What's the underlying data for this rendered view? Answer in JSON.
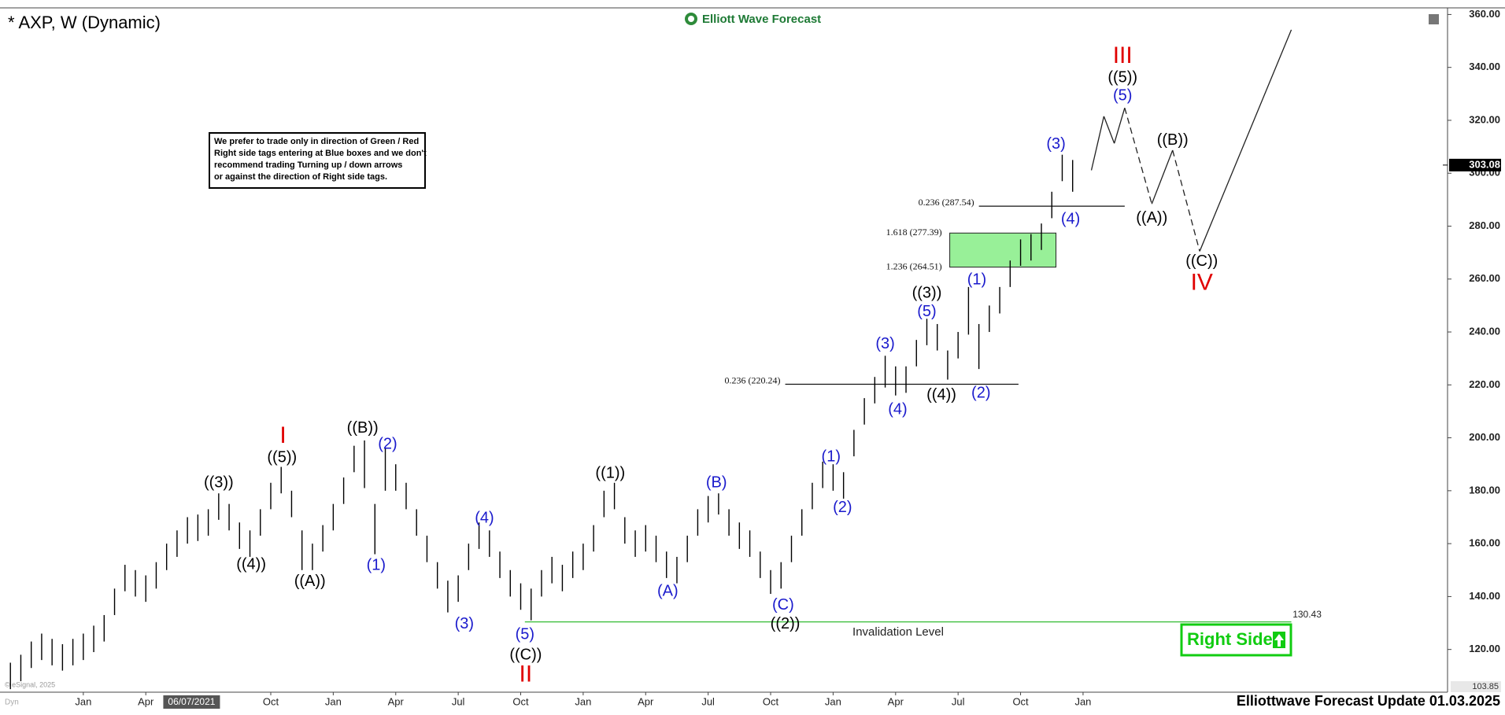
{
  "chart_data": {
    "type": "ohlc",
    "title": "* AXP, W (Dynamic)",
    "logo": "Elliott Wave Forecast",
    "note": [
      "We prefer to trade only in direction of Green / Red",
      "Right side tags entering at Blue boxes and we don't",
      "recommend trading Turning up / down arrows",
      "or against the direction of Right side tags."
    ],
    "footer": "Elliottwave Forecast Update 01.03.2025",
    "right_side_tag": "Right Side",
    "watermark": "© eSignal, 2025",
    "dyn_label": "Dyn",
    "cursor_date": {
      "label": "06/07/2021",
      "x": 5.2
    },
    "last_price": 303.08,
    "color": "#000000",
    "grid": false,
    "xlim": [
      -4,
      65.5
    ],
    "ylim": [
      103.85,
      362.5
    ],
    "xticks": [
      {
        "value": 0,
        "label": "Jan"
      },
      {
        "value": 3,
        "label": "Apr"
      },
      {
        "value": 9,
        "label": "Oct"
      },
      {
        "value": 12,
        "label": "Jan"
      },
      {
        "value": 15,
        "label": "Apr"
      },
      {
        "value": 18,
        "label": "Jul"
      },
      {
        "value": 21,
        "label": "Oct"
      },
      {
        "value": 24,
        "label": "Jan"
      },
      {
        "value": 27,
        "label": "Apr"
      },
      {
        "value": 30,
        "label": "Jul"
      },
      {
        "value": 33,
        "label": "Oct"
      },
      {
        "value": 36,
        "label": "Jan"
      },
      {
        "value": 39,
        "label": "Apr"
      },
      {
        "value": 42,
        "label": "Jul"
      },
      {
        "value": 45,
        "label": "Oct"
      },
      {
        "value": 48,
        "label": "Jan"
      }
    ],
    "yticks": [
      {
        "value": 120,
        "label": "120.00"
      },
      {
        "value": 140,
        "label": "140.00"
      },
      {
        "value": 160,
        "label": "160.00"
      },
      {
        "value": 180,
        "label": "180.00"
      },
      {
        "value": 200,
        "label": "200.00"
      },
      {
        "value": 220,
        "label": "220.00"
      },
      {
        "value": 240,
        "label": "240.00"
      },
      {
        "value": 260,
        "label": "260.00"
      },
      {
        "value": 280,
        "label": "280.00"
      },
      {
        "value": 300,
        "label": "300.00"
      },
      {
        "value": 320,
        "label": "320.00"
      },
      {
        "value": 340,
        "label": "340.00"
      },
      {
        "value": 360,
        "label": "360.00"
      }
    ],
    "x": [
      -3.5,
      -3,
      -2.5,
      -2,
      -1.5,
      -1,
      -0.5,
      0,
      0.5,
      1,
      1.5,
      2,
      2.5,
      3,
      3.5,
      4,
      4.5,
      5,
      5.5,
      6,
      6.5,
      7,
      7.5,
      8,
      8.5,
      9,
      9.5,
      10,
      10.5,
      11,
      11.5,
      12,
      12.5,
      13,
      13.5,
      14,
      14.5,
      15,
      15.5,
      16,
      16.5,
      17,
      17.5,
      18,
      18.5,
      19,
      19.5,
      20,
      20.5,
      21,
      21.5,
      22,
      22.5,
      23,
      23.5,
      24,
      24.5,
      25,
      25.5,
      26,
      26.5,
      27,
      27.5,
      28,
      28.5,
      29,
      29.5,
      30,
      30.5,
      31,
      31.5,
      32,
      32.5,
      33,
      33.5,
      34,
      34.5,
      35,
      35.5,
      36,
      36.5,
      37,
      37.5,
      38,
      38.5,
      39,
      39.5,
      40,
      40.5,
      41,
      41.5,
      42,
      42.5,
      43,
      43.5,
      44,
      44.5,
      45,
      45.5,
      46,
      46.5,
      47,
      47.5
    ],
    "high": [
      115,
      118,
      123,
      126,
      124,
      122,
      124,
      126,
      129,
      133,
      143,
      152,
      150,
      148,
      153,
      160,
      165,
      170,
      171,
      173,
      179,
      175,
      168,
      165,
      173,
      183,
      189,
      180,
      165,
      160,
      167,
      175,
      185,
      197,
      199,
      175,
      196,
      190,
      183,
      173,
      163,
      153,
      146,
      148,
      160,
      168,
      165,
      157,
      150,
      145,
      143,
      150,
      155,
      152,
      157,
      160,
      167,
      180,
      183,
      170,
      165,
      167,
      163,
      157,
      155,
      163,
      173,
      178,
      179,
      173,
      168,
      165,
      157,
      150,
      153,
      163,
      173,
      183,
      191,
      190,
      187,
      203,
      215,
      223,
      231,
      227,
      227,
      237,
      245,
      243,
      233,
      240,
      257,
      243,
      250,
      257,
      267,
      275,
      277,
      281,
      293,
      307,
      305
    ],
    "low": [
      105,
      108,
      113,
      116,
      114,
      112,
      114,
      116,
      119,
      123,
      133,
      142,
      140,
      138,
      143,
      150,
      155,
      160,
      161,
      163,
      169,
      165,
      158,
      155,
      163,
      173,
      179,
      170,
      150,
      150,
      157,
      165,
      175,
      187,
      181,
      156,
      180,
      180,
      173,
      163,
      153,
      143,
      134,
      138,
      150,
      158,
      155,
      147,
      140,
      135,
      131,
      140,
      145,
      142,
      147,
      150,
      157,
      170,
      173,
      160,
      155,
      157,
      153,
      147,
      145,
      153,
      163,
      168,
      171,
      163,
      158,
      155,
      147,
      141,
      143,
      153,
      163,
      173,
      181,
      180,
      177,
      193,
      205,
      213,
      219,
      216,
      217,
      227,
      235,
      233,
      222,
      230,
      239,
      226,
      240,
      247,
      257,
      265,
      267,
      271,
      283,
      297,
      293
    ],
    "projection": {
      "x": [
        48.4,
        49.0,
        49.5,
        50.0,
        51.3,
        52.3,
        53.6,
        58.0
      ],
      "values": [
        301.1,
        321.5,
        311.3,
        324.7,
        288.4,
        308.7,
        270.5,
        354.2
      ],
      "dashed": [
        false,
        false,
        false,
        true,
        false,
        true,
        false
      ]
    },
    "fib_lines": [
      {
        "label": "0.236 (287.54)",
        "value": 287.54,
        "x": [
          43.0,
          50.0
        ]
      },
      {
        "label": "0.236 (220.24)",
        "value": 220.24,
        "x": [
          33.7,
          44.9
        ]
      }
    ],
    "fib_box": {
      "x": [
        41.6,
        46.7
      ],
      "color": "#98f098",
      "levels": [
        {
          "label": "1.618 (277.39)",
          "value": 277.39
        },
        {
          "label": "1.236 (264.51)",
          "value": 264.51
        }
      ]
    },
    "invalidation": {
      "label": "Invalidation Level",
      "value": 130.43,
      "x": [
        21.2,
        58.0
      ],
      "color": "#33bb33"
    },
    "annotations": [
      {
        "text": "I",
        "x": 9.59,
        "y": 200.4,
        "color": "#e00000"
      },
      {
        "text": "((5))",
        "x": 9.54,
        "y": 192.4,
        "color": "#000000"
      },
      {
        "text": "((3))",
        "x": 6.5,
        "y": 182.9,
        "color": "#000000"
      },
      {
        "text": "((4))",
        "x": 8.06,
        "y": 152.0,
        "color": "#000000"
      },
      {
        "text": "((A))",
        "x": 10.88,
        "y": 145.5,
        "color": "#000000"
      },
      {
        "text": "((B))",
        "x": 13.41,
        "y": 203.6,
        "color": "#000000"
      },
      {
        "text": "(2)",
        "x": 14.61,
        "y": 197.5,
        "color": "#1a1acc"
      },
      {
        "text": "(1)",
        "x": 14.06,
        "y": 151.6,
        "color": "#1a1acc"
      },
      {
        "text": "(3)",
        "x": 18.29,
        "y": 129.5,
        "color": "#1a1acc"
      },
      {
        "text": "(4)",
        "x": 19.26,
        "y": 169.5,
        "color": "#1a1acc"
      },
      {
        "text": "(5)",
        "x": 21.2,
        "y": 125.5,
        "color": "#1a1acc"
      },
      {
        "text": "((C))",
        "x": 21.24,
        "y": 117.8,
        "color": "#000000"
      },
      {
        "text": "II",
        "x": 21.24,
        "y": 110.2,
        "color": "#e00000"
      },
      {
        "text": "((1))",
        "x": 25.3,
        "y": 186.5,
        "color": "#000000"
      },
      {
        "text": "(A)",
        "x": 28.06,
        "y": 141.8,
        "color": "#1a1acc"
      },
      {
        "text": "(B)",
        "x": 30.4,
        "y": 182.9,
        "color": "#1a1acc"
      },
      {
        "text": "(C)",
        "x": 33.6,
        "y": 136.7,
        "color": "#1a1acc"
      },
      {
        "text": "((2))",
        "x": 33.7,
        "y": 129.5,
        "color": "#000000"
      },
      {
        "text": "(1)",
        "x": 35.9,
        "y": 192.7,
        "color": "#1a1acc"
      },
      {
        "text": "(2)",
        "x": 36.45,
        "y": 173.5,
        "color": "#1a1acc"
      },
      {
        "text": "(3)",
        "x": 38.5,
        "y": 235.3,
        "color": "#1a1acc"
      },
      {
        "text": "(4)",
        "x": 39.1,
        "y": 210.5,
        "color": "#1a1acc"
      },
      {
        "text": "(5)",
        "x": 40.5,
        "y": 247.6,
        "color": "#1a1acc"
      },
      {
        "text": "((3))",
        "x": 40.5,
        "y": 254.5,
        "color": "#000000"
      },
      {
        "text": "((4))",
        "x": 41.2,
        "y": 216.0,
        "color": "#000000"
      },
      {
        "text": "(1)",
        "x": 42.9,
        "y": 259.6,
        "color": "#1a1acc"
      },
      {
        "text": "(2)",
        "x": 43.1,
        "y": 216.7,
        "color": "#1a1acc"
      },
      {
        "text": "(3)",
        "x": 46.7,
        "y": 310.9,
        "color": "#1a1acc"
      },
      {
        "text": "(4)",
        "x": 47.4,
        "y": 282.5,
        "color": "#1a1acc"
      },
      {
        "text": "(5)",
        "x": 49.9,
        "y": 329.1,
        "color": "#1a1acc"
      },
      {
        "text": "((5))",
        "x": 49.9,
        "y": 336.0,
        "color": "#000000"
      },
      {
        "text": "III",
        "x": 49.9,
        "y": 344.0,
        "color": "#e00000"
      },
      {
        "text": "((A))",
        "x": 51.3,
        "y": 282.9,
        "color": "#000000"
      },
      {
        "text": "((B))",
        "x": 52.3,
        "y": 312.4,
        "color": "#000000"
      },
      {
        "text": "((C))",
        "x": 53.7,
        "y": 266.5,
        "color": "#000000"
      },
      {
        "text": "IV",
        "x": 53.7,
        "y": 258.2,
        "color": "#e00000"
      }
    ]
  }
}
